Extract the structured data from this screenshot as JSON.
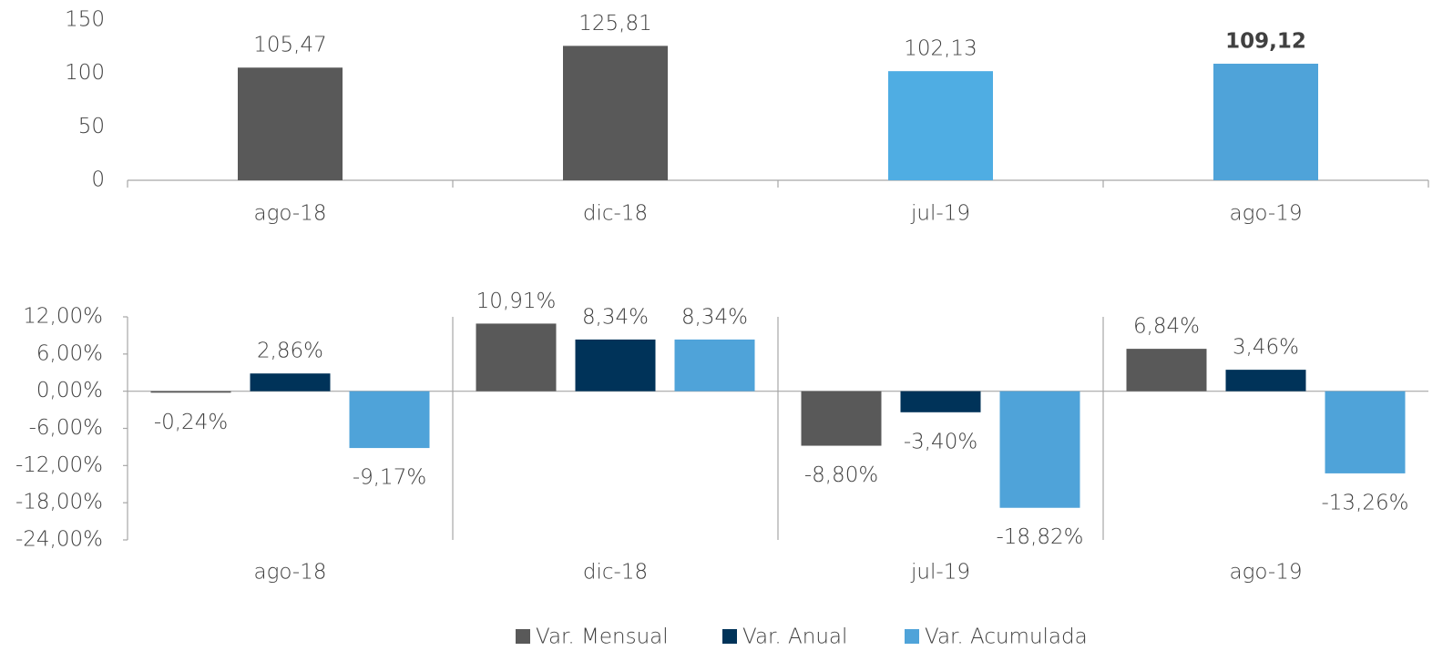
{
  "chart_data": [
    {
      "type": "bar",
      "categories": [
        "ago-18",
        "dic-18",
        "jul-19",
        "ago-19"
      ],
      "values": [
        105.47,
        125.81,
        102.13,
        109.12
      ],
      "value_labels": [
        "105,47",
        "125,81",
        "102,13",
        "109,12"
      ],
      "value_label_weights": [
        "normal",
        "normal",
        "normal",
        "bold"
      ],
      "colors": [
        "#595959",
        "#595959",
        "#4fade3",
        "#4fa3d9"
      ],
      "ylim": [
        0,
        150
      ],
      "yticks": [
        0,
        50,
        100,
        150
      ]
    },
    {
      "type": "grouped_bar",
      "categories": [
        "ago-18",
        "dic-18",
        "jul-19",
        "ago-19"
      ],
      "series": [
        {
          "name": "Var. Mensual",
          "color": "#595959",
          "values": [
            -0.24,
            10.91,
            -8.8,
            6.84
          ],
          "value_labels": [
            "-0,24%",
            "10,91%",
            "-8,80%",
            "6,84%"
          ]
        },
        {
          "name": "Var. Anual",
          "color": "#003359",
          "values": [
            2.86,
            8.34,
            -3.4,
            3.46
          ],
          "value_labels": [
            "2,86%",
            "8,34%",
            "-3,40%",
            "3,46%"
          ]
        },
        {
          "name": "Var. Acumulada",
          "color": "#4fa3d9",
          "values": [
            -9.17,
            8.34,
            -18.82,
            -13.26
          ],
          "value_labels": [
            "-9,17%",
            "8,34%",
            "-18,82%",
            "-13,26%"
          ]
        }
      ],
      "ylim": [
        -24,
        12
      ],
      "yticks": [
        {
          "value": -24,
          "label": "-24,00%"
        },
        {
          "value": -18,
          "label": "-18,00%"
        },
        {
          "value": -12,
          "label": "-12,00%"
        },
        {
          "value": -6,
          "label": "-6,00%"
        },
        {
          "value": 0,
          "label": "0,00%"
        },
        {
          "value": 6,
          "label": "6,00%"
        },
        {
          "value": 12,
          "label": "12,00%"
        }
      ],
      "legend": "bottom"
    }
  ]
}
